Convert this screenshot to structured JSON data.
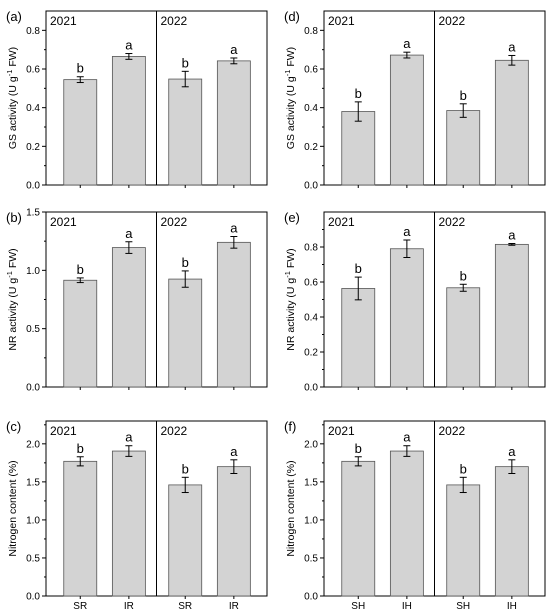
{
  "chart_data": [
    {
      "type": "bar",
      "panel": "(a)",
      "ylabel": "GS activity (U g-1 FW)",
      "ylim": [
        0,
        0.9
      ],
      "yticks": [
        0.0,
        0.2,
        0.4,
        0.6,
        0.8
      ],
      "groups": [
        {
          "name": "2021",
          "categories": [
            "SR",
            "IR"
          ],
          "values": [
            0.545,
            0.665
          ],
          "errors": [
            0.015,
            0.015
          ],
          "letters": [
            "b",
            "a"
          ]
        },
        {
          "name": "2022",
          "categories": [
            "SR",
            "IR"
          ],
          "values": [
            0.548,
            0.642
          ],
          "errors": [
            0.04,
            0.015
          ],
          "letters": [
            "b",
            "a"
          ]
        }
      ]
    },
    {
      "type": "bar",
      "panel": "(d)",
      "ylabel": "GS activity (U g-1 FW)",
      "ylim": [
        0,
        0.9
      ],
      "yticks": [
        0.0,
        0.2,
        0.4,
        0.6,
        0.8
      ],
      "groups": [
        {
          "name": "2021",
          "categories": [
            "SH",
            "IH"
          ],
          "values": [
            0.38,
            0.672
          ],
          "errors": [
            0.05,
            0.015
          ],
          "letters": [
            "b",
            "a"
          ]
        },
        {
          "name": "2022",
          "categories": [
            "SH",
            "IH"
          ],
          "values": [
            0.385,
            0.645
          ],
          "errors": [
            0.035,
            0.025
          ],
          "letters": [
            "b",
            "a"
          ]
        }
      ]
    },
    {
      "type": "bar",
      "panel": "(b)",
      "ylabel": "NR activity (U g-1 FW)",
      "ylim": [
        0,
        1.5
      ],
      "yticks": [
        0.0,
        0.5,
        1.0,
        1.5
      ],
      "groups": [
        {
          "name": "2021",
          "categories": [
            "SR",
            "IR"
          ],
          "values": [
            0.915,
            1.195
          ],
          "errors": [
            0.02,
            0.05
          ],
          "letters": [
            "b",
            "a"
          ]
        },
        {
          "name": "2022",
          "categories": [
            "SR",
            "IR"
          ],
          "values": [
            0.925,
            1.24
          ],
          "errors": [
            0.07,
            0.05
          ],
          "letters": [
            "b",
            "a"
          ]
        }
      ]
    },
    {
      "type": "bar",
      "panel": "(e)",
      "ylabel": "NR activity (U g-1 FW)",
      "ylim": [
        0,
        1.0
      ],
      "yticks": [
        0.0,
        0.2,
        0.4,
        0.6,
        0.8
      ],
      "groups": [
        {
          "name": "2021",
          "categories": [
            "SH",
            "IH"
          ],
          "values": [
            0.563,
            0.79
          ],
          "errors": [
            0.065,
            0.05
          ],
          "letters": [
            "b",
            "a"
          ]
        },
        {
          "name": "2022",
          "categories": [
            "SH",
            "IH"
          ],
          "values": [
            0.567,
            0.815
          ],
          "errors": [
            0.02,
            0.005
          ],
          "letters": [
            "b",
            "a"
          ]
        }
      ]
    },
    {
      "type": "bar",
      "panel": "(c)",
      "ylabel": "Nitrogen content (%)",
      "ylim": [
        0,
        2.3
      ],
      "yticks": [
        0.0,
        0.5,
        1.0,
        1.5,
        2.0
      ],
      "groups": [
        {
          "name": "2021",
          "categories": [
            "SR",
            "IR"
          ],
          "values": [
            1.77,
            1.905
          ],
          "errors": [
            0.06,
            0.07
          ],
          "letters": [
            "b",
            "a"
          ]
        },
        {
          "name": "2022",
          "categories": [
            "SR",
            "IR"
          ],
          "values": [
            1.46,
            1.7
          ],
          "errors": [
            0.1,
            0.09
          ],
          "letters": [
            "b",
            "a"
          ]
        }
      ]
    },
    {
      "type": "bar",
      "panel": "(f)",
      "ylabel": "Nitrogen content (%)",
      "ylim": [
        0,
        2.3
      ],
      "yticks": [
        0.0,
        0.5,
        1.0,
        1.5,
        2.0
      ],
      "groups": [
        {
          "name": "2021",
          "categories": [
            "SH",
            "IH"
          ],
          "values": [
            1.77,
            1.905
          ],
          "errors": [
            0.06,
            0.07
          ],
          "letters": [
            "b",
            "a"
          ]
        },
        {
          "name": "2022",
          "categories": [
            "SH",
            "IH"
          ],
          "values": [
            1.46,
            1.7
          ],
          "errors": [
            0.1,
            0.09
          ],
          "letters": [
            "b",
            "a"
          ]
        }
      ]
    }
  ],
  "colors": {
    "bar_fill": "#d3d3d3",
    "bar_stroke": "#555555",
    "axis": "#000000"
  }
}
